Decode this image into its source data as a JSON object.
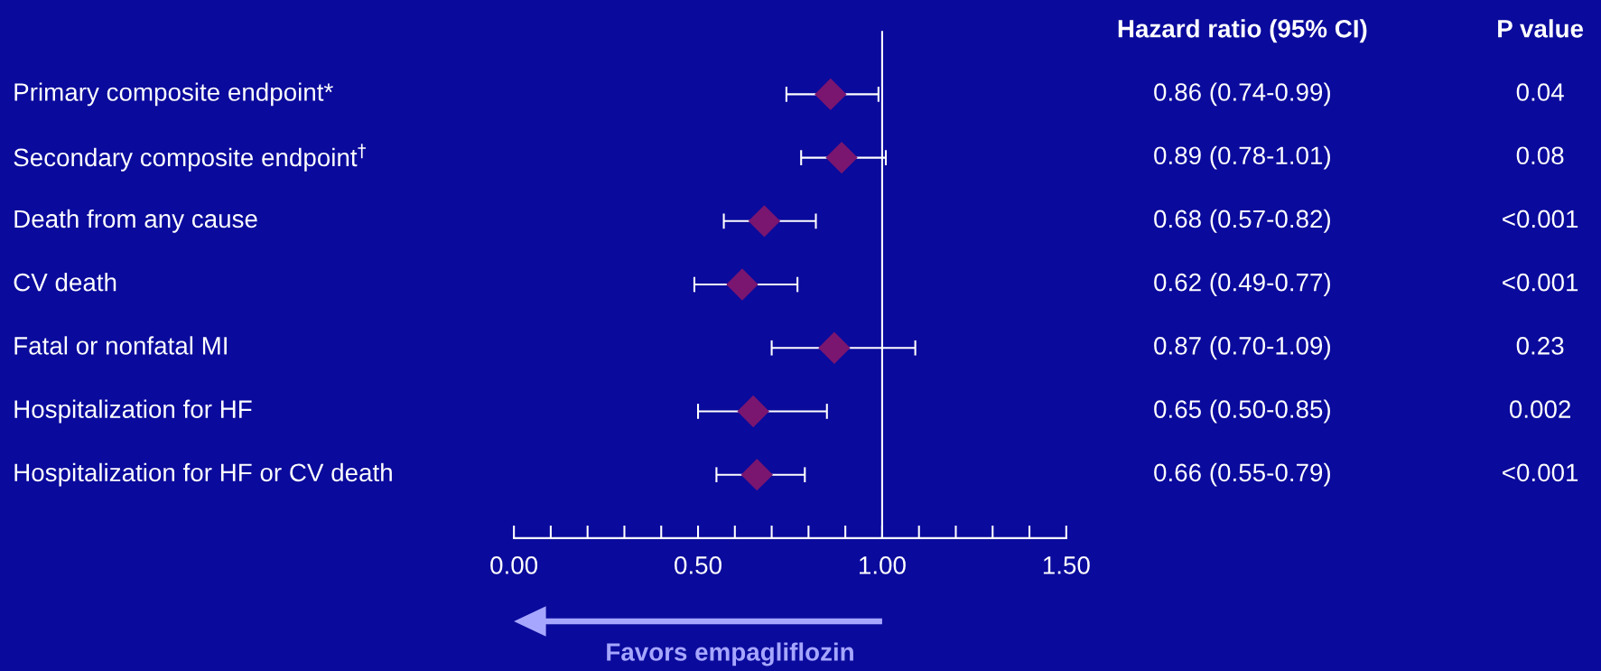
{
  "chart_data": {
    "type": "scatter",
    "orientation": "horizontal",
    "categories": [
      "Primary composite endpoint*",
      "Secondary composite endpoint$^{†}$",
      "Death from any cause",
      "CV death",
      "Fatal or nonfatal MI",
      "Hospitalization for HF",
      "Hospitalization for HF or CV death"
    ],
    "series": [
      {
        "color": "#7b1670",
        "values": [
          0.86,
          0.89,
          0.68,
          0.62,
          0.87,
          0.65,
          0.66
        ],
        "errors": [
          [
            0.74,
            0.99
          ],
          [
            0.78,
            1.01
          ],
          [
            0.57,
            0.82
          ],
          [
            0.49,
            0.77
          ],
          [
            0.7,
            1.09
          ],
          [
            0.5,
            0.85
          ],
          [
            0.55,
            0.79
          ]
        ],
        "value_labels": [
          "0.86 (0.74-0.99)",
          "0.89 (0.78-1.01)",
          "0.68 (0.57-0.82)",
          "0.62 (0.49-0.77)",
          "0.87 (0.70-1.09)",
          "0.65 (0.50-0.85)",
          "0.66 (0.55-0.79)"
        ]
      }
    ],
    "marker": "diamond",
    "xlim": [
      0,
      1.5
    ],
    "xticks": [
      {
        "value": 0,
        "label": "0.00"
      },
      {
        "value": 0.1,
        "label": null
      },
      {
        "value": 0.2,
        "label": null
      },
      {
        "value": 0.3,
        "label": null
      },
      {
        "value": 0.4,
        "label": null
      },
      {
        "value": 0.5,
        "label": "0.50"
      },
      {
        "value": 0.6,
        "label": null
      },
      {
        "value": 0.7,
        "label": null
      },
      {
        "value": 0.8,
        "label": null
      },
      {
        "value": 0.9,
        "label": null
      },
      {
        "value": 1.0,
        "label": "1.00"
      },
      {
        "value": 1.1,
        "label": null
      },
      {
        "value": 1.2,
        "label": null
      },
      {
        "value": 1.3,
        "label": null
      },
      {
        "value": 1.4,
        "label": null
      },
      {
        "value": 1.5,
        "label": "1.50"
      }
    ],
    "ref_lines": [
      {
        "axis": "x",
        "value": 1.0,
        "color": "#ffffff"
      }
    ],
    "grid": false,
    "annotations": [
      "Hazard ratio (95% CI)",
      "P value",
      "0.04",
      "0.08",
      "<0.001",
      "<0.001",
      "0.23",
      "0.002",
      "<0.001",
      "Favors empagliflozin"
    ]
  }
}
